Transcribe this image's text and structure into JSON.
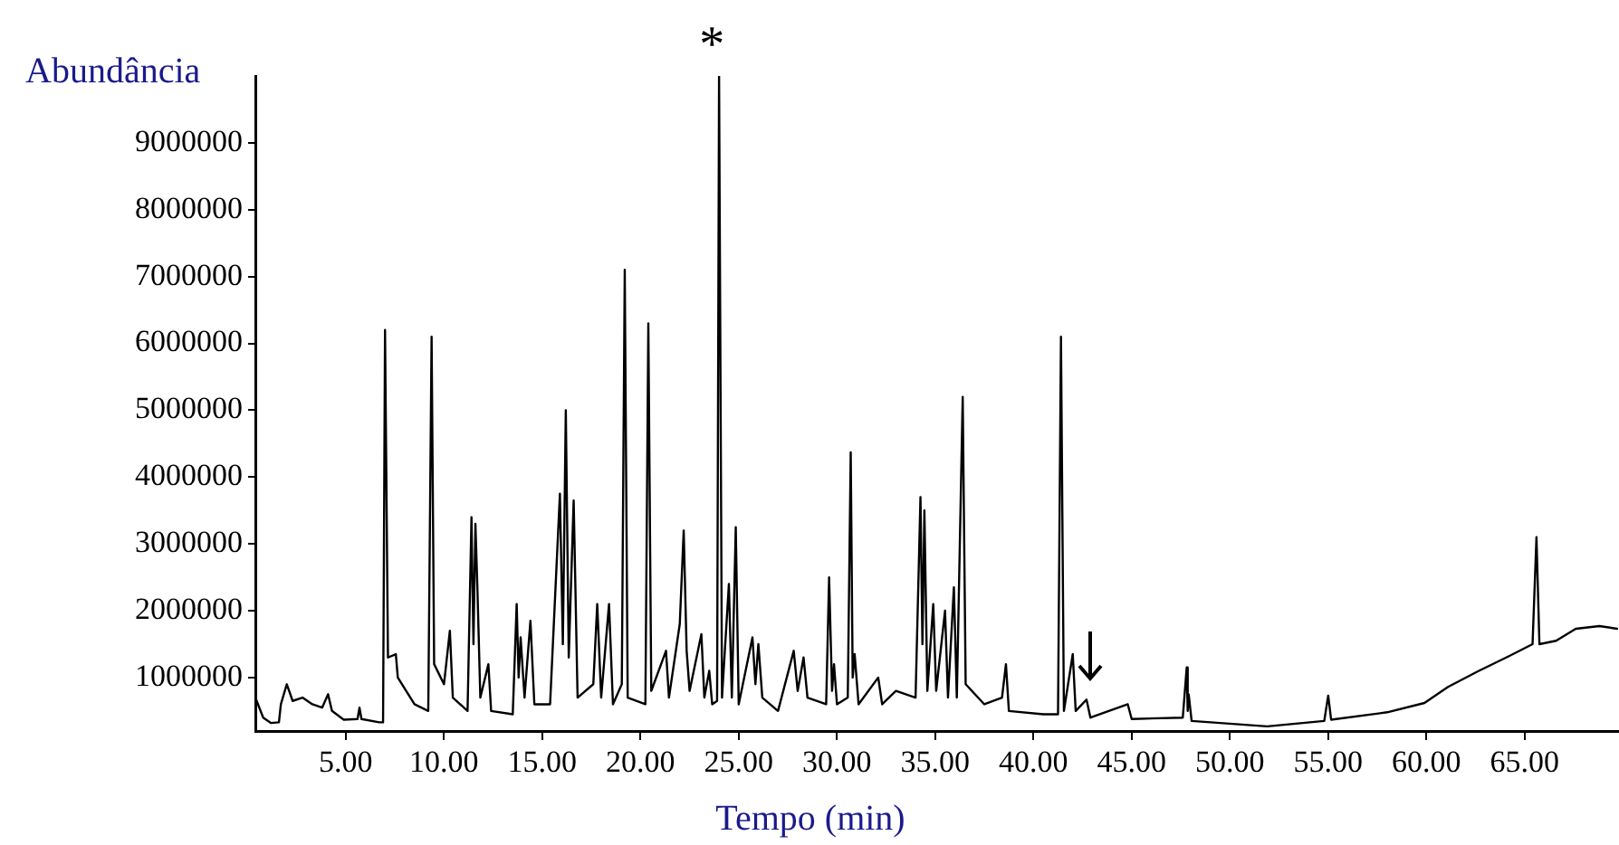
{
  "chart_data": {
    "type": "line",
    "xlabel": "Tempo (min)",
    "ylabel": "Abundância",
    "xlim": [
      0.4,
      69.8
    ],
    "xticks": [
      {
        "value": 5,
        "label": "5.00"
      },
      {
        "value": 10,
        "label": "10.00"
      },
      {
        "value": 15,
        "label": "15.00"
      },
      {
        "value": 20,
        "label": "20.00"
      },
      {
        "value": 25,
        "label": "25.00"
      },
      {
        "value": 30,
        "label": "30.00"
      },
      {
        "value": 35,
        "label": "35.00"
      },
      {
        "value": 40,
        "label": "40.00"
      },
      {
        "value": 45,
        "label": "45.00"
      },
      {
        "value": 50,
        "label": "50.00"
      },
      {
        "value": 55,
        "label": "55.00"
      },
      {
        "value": 60,
        "label": "60.00"
      },
      {
        "value": 65,
        "label": "65.00"
      }
    ],
    "ylim": [
      200000,
      10000000
    ],
    "yticks": [
      1000000,
      2000000,
      3000000,
      4000000,
      5000000,
      6000000,
      7000000,
      8000000,
      9000000
    ],
    "grid": false,
    "legend": false,
    "marker": "none",
    "line_style": "solid",
    "annotations": [
      {
        "text": "*",
        "x": 24,
        "y": 10000000
      }
    ],
    "series": [
      {
        "color": "#000000",
        "x": [
          0.4,
          0.8,
          1.2,
          1.6,
          1.7,
          2.0,
          2.3,
          2.8,
          3.3,
          3.8,
          4.1,
          4.3,
          4.9,
          5.6,
          5.7,
          5.8,
          6.7,
          6.9,
          7.0,
          7.15,
          7.55,
          7.65,
          8.5,
          9.2,
          9.37,
          9.5,
          10.0,
          10.3,
          10.45,
          11.2,
          11.4,
          11.5,
          11.6,
          11.7,
          11.85,
          12.26,
          12.4,
          13.5,
          13.7,
          13.8,
          13.9,
          14.1,
          14.4,
          14.6,
          15.4,
          15.9,
          16.05,
          16.2,
          16.35,
          16.6,
          16.8,
          17.6,
          17.8,
          18.0,
          18.4,
          18.6,
          19.05,
          19.2,
          19.35,
          20.25,
          20.4,
          20.55,
          21.3,
          21.45,
          22.0,
          22.2,
          22.35,
          22.5,
          23.1,
          23.25,
          23.5,
          23.65,
          23.9,
          24.0,
          24.15,
          24.5,
          24.65,
          24.85,
          25.0,
          25.7,
          25.85,
          26.0,
          26.2,
          27.0,
          27.8,
          28.0,
          28.3,
          28.5,
          29.45,
          29.6,
          29.75,
          29.85,
          30.0,
          30.55,
          30.7,
          30.8,
          30.9,
          31.1,
          32.1,
          32.3,
          33.0,
          34.0,
          34.25,
          34.35,
          34.45,
          34.6,
          34.9,
          35.05,
          35.5,
          35.65,
          35.95,
          36.1,
          36.4,
          36.55,
          37.5,
          38.4,
          38.6,
          38.75,
          40.5,
          41.25,
          41.4,
          41.55,
          42.0,
          42.15,
          42.7,
          42.9,
          44.8,
          45.0,
          47.6,
          47.8,
          47.85,
          47.9,
          48.05,
          51.9,
          54.8,
          55.0,
          55.15,
          58.0,
          59.9,
          61.1,
          62.6,
          64.2,
          65.4,
          65.6,
          65.75,
          66.6,
          67.6,
          68.8,
          69.7
        ],
        "values": [
          700000,
          400000,
          320000,
          330000,
          600000,
          900000,
          650000,
          700000,
          600000,
          550000,
          750000,
          500000,
          370000,
          380000,
          550000,
          380000,
          330000,
          330000,
          6200000,
          1300000,
          1350000,
          1000000,
          600000,
          500000,
          6100000,
          1200000,
          900000,
          1700000,
          700000,
          500000,
          3400000,
          1500000,
          3300000,
          2350000,
          700000,
          1200000,
          500000,
          450000,
          2100000,
          1000000,
          1600000,
          700000,
          1850000,
          600000,
          600000,
          3750000,
          1500000,
          5000000,
          1300000,
          3650000,
          700000,
          900000,
          2100000,
          700000,
          2100000,
          600000,
          900000,
          7100000,
          700000,
          600000,
          6300000,
          800000,
          1400000,
          700000,
          1800000,
          3200000,
          1400000,
          800000,
          1650000,
          700000,
          1100000,
          600000,
          650000,
          10000000,
          700000,
          2400000,
          700000,
          3250000,
          600000,
          1600000,
          900000,
          1500000,
          700000,
          500000,
          1400000,
          800000,
          1300000,
          700000,
          600000,
          2500000,
          800000,
          1200000,
          600000,
          700000,
          4370000,
          1000000,
          1350000,
          600000,
          1000000,
          600000,
          800000,
          700000,
          3700000,
          1500000,
          3500000,
          800000,
          2100000,
          800000,
          2000000,
          700000,
          2350000,
          700000,
          5200000,
          900000,
          600000,
          700000,
          1200000,
          500000,
          450000,
          450000,
          6100000,
          500000,
          1350000,
          500000,
          670000,
          400000,
          600000,
          380000,
          400000,
          1150000,
          500000,
          750000,
          350000,
          270000,
          350000,
          730000,
          370000,
          480000,
          620000,
          860000,
          1090000,
          1320000,
          1500000,
          3100000,
          1500000,
          1550000,
          1730000,
          1770000,
          1730000
        ]
      }
    ]
  }
}
